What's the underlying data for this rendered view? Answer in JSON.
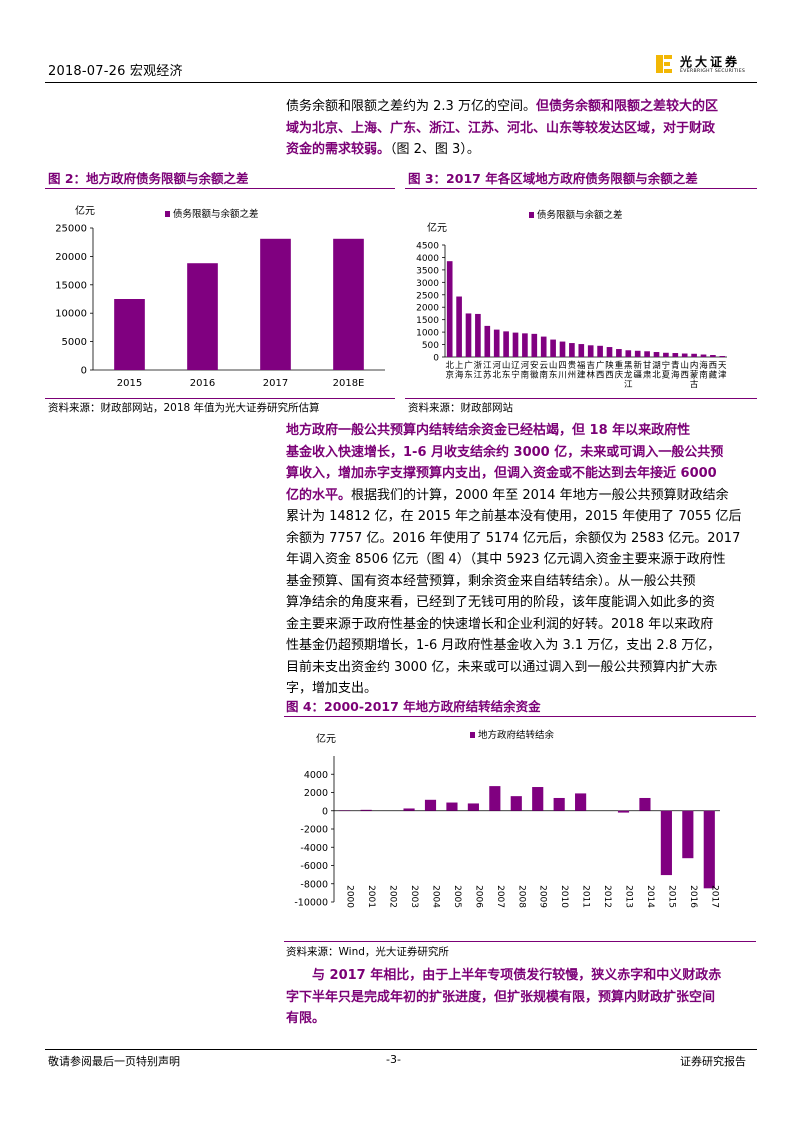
{
  "header": {
    "date_topic": "2018-07-26    宏观经济",
    "logo_cn": "光大证券",
    "logo_en": "EVERBRIGHT SECURITIES"
  },
  "intro": {
    "line1_normal": "债务余额和限额之差约为 2.3 万亿的空间。",
    "line1_bold": "但债务余额和限额之差较大的区",
    "line2_bold": "域为北京、上海、广东、浙江、江苏、河北、山东等较发达区域，对于财政",
    "line3_bold": "资金的需求较弱。",
    "line3_normal": "（图 2、图 3）。"
  },
  "fig2": {
    "title": "图 2：地方政府债务限额与余额之差",
    "source": "资料来源：财政部网站，2018 年值为光大证券研究所估算"
  },
  "fig3": {
    "title": "图 3：2017 年各区域地方政府债务限额与余额之差",
    "source": "资料来源：财政部网站"
  },
  "para2": {
    "l1": "地方政府一般公共预算内结转结余资金已经枯竭，但 18 年以来政府性",
    "l2": "基金收入快速增长，1-6 月收支结余约 3000 亿，未来或可调入一般公共预",
    "l3": "算收入，增加赤字支撑预算内支出，但调入资金或不能达到去年接近 6000",
    "l4_bold": "亿的水平。",
    "l4_normal": "根据我们的计算，2000 年至 2014 年地方一般公共预算财政结余",
    "l5": "累计为 14812 亿，在 2015 年之前基本没有使用，2015 年使用了 7055 亿后",
    "l6": "余额为 7757 亿。2016 年使用了 5174 亿元后，余额仅为 2583 亿元。2017",
    "l7": "年调入资金 8506 亿元（图 4）（其中 5923 亿元调入资金主要来源于政府性",
    "l8": "基金预算、国有资本经营预算，剩余资金来自结转结余）。从一般公共预",
    "l9": "算净结余的角度来看，已经到了无钱可用的阶段，该年度能调入如此多的资",
    "l10": "金主要来源于政府性基金的快速增长和企业利润的好转。2018 年以来政府",
    "l11": "性基金仍超预期增长，1-6 月政府性基金收入为 3.1 万亿，支出 2.8 万亿，",
    "l12": "目前未支出资金约 3000 亿，未来或可以通过调入到一般公共预算内扩大赤",
    "l13": "字，增加支出。"
  },
  "fig4": {
    "title": "图 4：2000-2017 年地方政府结转结余资金",
    "source": "资料来源：Wind，光大证券研究所"
  },
  "para3": {
    "l1": "与 2017 年相比，由于上半年专项债发行较慢，狭义赤字和中义财政赤",
    "l2": "字下半年只是完成年初的扩张进度，但扩张规模有限，预算内财政扩张空间",
    "l3": "有限。"
  },
  "footer": {
    "left": "敬请参阅最后一页特别声明",
    "center": "-3-",
    "right": "证券研究报告"
  },
  "chart_data": [
    {
      "type": "bar",
      "ylabel": "亿元",
      "legend": "top",
      "grid": false,
      "ylim": [
        0,
        25000
      ],
      "yticks": [
        0,
        5000,
        10000,
        15000,
        20000,
        25000
      ],
      "categories": [
        "2015",
        "2016",
        "2017",
        "2018E"
      ],
      "series": [
        {
          "name": "债务限额与余额之差",
          "values": [
            12500,
            18800,
            23100,
            23100
          ]
        }
      ],
      "color": "#800080"
    },
    {
      "type": "bar",
      "ylabel": "亿元",
      "legend": "top",
      "grid": false,
      "ylim": [
        0,
        4500
      ],
      "yticks": [
        0,
        500,
        1000,
        1500,
        2000,
        2500,
        3000,
        3500,
        4000,
        4500
      ],
      "categories": [
        "北京",
        "上海",
        "广东",
        "浙江",
        "江苏",
        "河北",
        "山东",
        "辽宁",
        "河南",
        "安徽",
        "云南",
        "山东",
        "四川",
        "贵州",
        "福建",
        "吉林",
        "广西",
        "陕西",
        "重庆",
        "黑龙",
        "江新疆",
        "甘肃",
        "湖北",
        "宁夏",
        "青海",
        "山西",
        "内蒙古",
        "海南",
        "西藏",
        "天津"
      ],
      "category_labels": [
        "北京",
        "上海",
        "广东",
        "浙江",
        "江苏",
        "河北",
        "山东",
        "辽宁",
        "河南",
        "安徽",
        "云南",
        "山东",
        "四川",
        "贵州",
        "福建",
        "吉林",
        "广西",
        "陕西",
        "重庆",
        "黑龙江",
        "新疆",
        "甘肃",
        "湖北",
        "宁夏",
        "青海",
        "山西",
        "内蒙古",
        "海南",
        "西藏",
        "天津"
      ],
      "series": [
        {
          "name": "债务限额与余额之差",
          "values": [
            3850,
            2430,
            1750,
            1730,
            1250,
            1100,
            1030,
            980,
            950,
            930,
            820,
            700,
            620,
            560,
            520,
            470,
            450,
            400,
            320,
            270,
            250,
            230,
            200,
            170,
            160,
            140,
            130,
            100,
            80,
            40
          ]
        }
      ],
      "color": "#800080"
    },
    {
      "type": "bar",
      "ylabel": "亿元",
      "legend": "top",
      "grid": false,
      "ylim": [
        -10000,
        6000
      ],
      "yticks": [
        -10000,
        -8000,
        -6000,
        -4000,
        -2000,
        0,
        2000,
        4000
      ],
      "categories": [
        "2000",
        "2001",
        "2002",
        "2003",
        "2004",
        "2005",
        "2006",
        "2007",
        "2008",
        "2009",
        "2010",
        "2011",
        "2012",
        "2013",
        "2014",
        "2015",
        "2016",
        "2017"
      ],
      "series": [
        {
          "name": "地方政府结转结余",
          "values": [
            50,
            100,
            0,
            250,
            1200,
            900,
            800,
            2700,
            1600,
            2600,
            1400,
            1900,
            0,
            -200,
            1400,
            -7050,
            -5200,
            -8500
          ]
        }
      ],
      "color": "#800080"
    }
  ]
}
